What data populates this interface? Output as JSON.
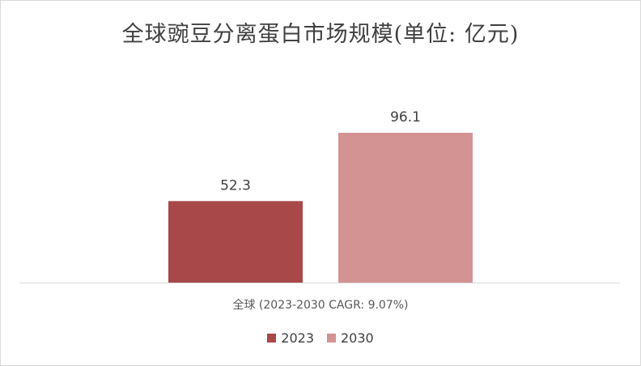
{
  "chart_data": {
    "type": "bar",
    "title": "全球豌豆分离蛋白市场规模(单位: 亿元)",
    "categories": [
      "全球 (2023-2030 CAGR: 9.07%)"
    ],
    "series": [
      {
        "name": "2023",
        "values": [
          52.3
        ],
        "color": "#a84848",
        "label": "52.3"
      },
      {
        "name": "2030",
        "values": [
          96.1
        ],
        "color": "#d39393",
        "label": "96.1"
      }
    ],
    "ylim": [
      0,
      150
    ],
    "grid": false,
    "legend": "bottom"
  }
}
